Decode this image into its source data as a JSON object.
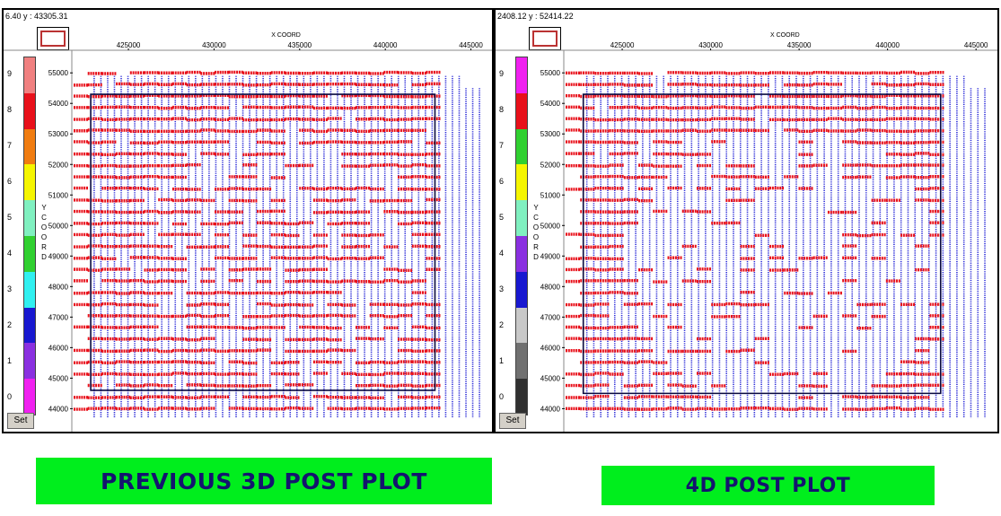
{
  "panels": [
    {
      "id": "left",
      "coord_readout": "6.40 y : 43305.31",
      "set_label": "Set",
      "y_axis_label": "Y\nC\nO\nO\nR\nD",
      "legend": {
        "labels": [
          "9",
          "8",
          "7",
          "6",
          "5",
          "4",
          "3",
          "2",
          "1",
          "0"
        ],
        "colors": [
          "#f08080",
          "#e8101a",
          "#f07c10",
          "#f5f500",
          "#80f0c0",
          "#30d030",
          "#30f0f0",
          "#1818d0",
          "#8a30e0",
          "#f020f0"
        ]
      },
      "chart_data": {
        "type": "scatter",
        "xlabel": "X COORD",
        "x_ticks": [
          425000,
          430000,
          435000,
          440000,
          445000
        ],
        "y_ticks": [
          55000,
          54000,
          53000,
          52000,
          51000,
          50000,
          49000,
          48000,
          47000,
          46000,
          45000,
          44000
        ],
        "xlim": [
          421800,
          445600
        ],
        "ylim": [
          43600,
          55300
        ],
        "receiver_lines": {
          "color": "#2b2bd8",
          "x_start": 423000,
          "x_end": 445500,
          "count": 58
        },
        "source_lines": {
          "color": "#e8101a",
          "y_start": 44000,
          "y_end": 55000,
          "count": 30
        },
        "boundary": [
          [
            422800,
            54300
          ],
          [
            442900,
            54300
          ],
          [
            442900,
            44600
          ],
          [
            422800,
            44600
          ]
        ],
        "missing_density": 0.12
      }
    },
    {
      "id": "right",
      "coord_readout": "2408.12 y : 52414.22",
      "set_label": "Set",
      "y_axis_label": "Y\nC\nO\nO\nR\nD",
      "legend": {
        "labels": [
          "9",
          "8",
          "7",
          "6",
          "5",
          "4",
          "3",
          "2",
          "1",
          "0"
        ],
        "colors": [
          "#f020f0",
          "#e8101a",
          "#30d030",
          "#f5f500",
          "#80f0c0",
          "#8a30e0",
          "#1818d0",
          "#c8c8c8",
          "#707070",
          "#303030"
        ]
      },
      "chart_data": {
        "type": "scatter",
        "xlabel": "X COORD",
        "x_ticks": [
          425000,
          430000,
          435000,
          440000,
          445000
        ],
        "y_ticks": [
          55000,
          54000,
          53000,
          52000,
          51000,
          50000,
          49000,
          48000,
          47000,
          46000,
          45000,
          44000
        ],
        "xlim": [
          421800,
          445600
        ],
        "ylim": [
          43600,
          55300
        ],
        "receiver_lines": {
          "color": "#2b2bd8",
          "x_start": 423000,
          "x_end": 445500,
          "count": 58
        },
        "source_lines": {
          "color": "#e8101a",
          "y_start": 44000,
          "y_end": 55000,
          "count": 30
        },
        "boundary": [
          [
            422800,
            54300
          ],
          [
            443000,
            54300
          ],
          [
            443000,
            44500
          ],
          [
            422800,
            44500
          ]
        ],
        "missing_density": 0.32
      }
    }
  ],
  "captions": {
    "left": "PREVIOUS 3D POST PLOT",
    "right": "4D POST PLOT"
  }
}
